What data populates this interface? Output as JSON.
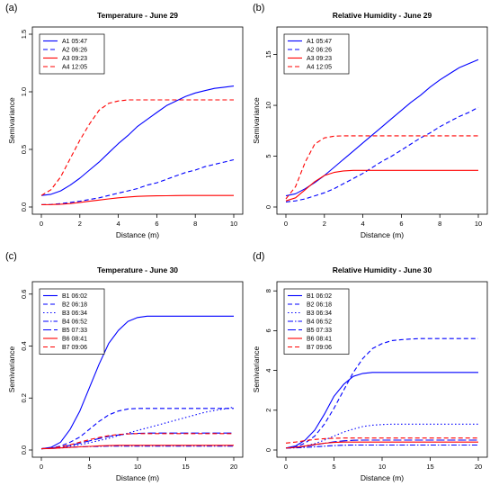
{
  "chart_data": [
    {
      "panel_label": "(a)",
      "title": "Temperature - June 29",
      "type": "line",
      "xlabel": "Distance (m)",
      "ylabel": "Semivariance",
      "xlim": [
        0,
        10
      ],
      "ylim": [
        0,
        1.5
      ],
      "xticks": [
        0,
        2,
        4,
        6,
        8,
        10
      ],
      "yticks": [
        0.0,
        0.5,
        1.0,
        1.5
      ],
      "ytick_labels": [
        "0.0",
        "0.5",
        "1.0",
        "1.5"
      ],
      "legend_position": "top-left",
      "x": [
        0,
        0.5,
        1,
        1.5,
        2,
        2.5,
        3,
        3.5,
        4,
        4.5,
        5,
        5.5,
        6,
        6.5,
        7,
        7.5,
        8,
        8.5,
        9,
        9.5,
        10
      ],
      "series": [
        {
          "name": "A1 05:47",
          "color": "#0000ff",
          "dash": "solid",
          "values": [
            0.1,
            0.11,
            0.14,
            0.19,
            0.25,
            0.32,
            0.39,
            0.47,
            0.55,
            0.62,
            0.7,
            0.76,
            0.82,
            0.88,
            0.92,
            0.96,
            0.99,
            1.01,
            1.03,
            1.04,
            1.05
          ]
        },
        {
          "name": "A2 06:26",
          "color": "#0000ff",
          "dash": "dashed",
          "values": [
            0.02,
            0.022,
            0.03,
            0.04,
            0.05,
            0.065,
            0.08,
            0.1,
            0.12,
            0.14,
            0.16,
            0.19,
            0.21,
            0.24,
            0.27,
            0.3,
            0.32,
            0.35,
            0.37,
            0.39,
            0.41
          ]
        },
        {
          "name": "A3 09:23",
          "color": "#ff0000",
          "dash": "solid",
          "values": [
            0.02,
            0.021,
            0.024,
            0.03,
            0.04,
            0.05,
            0.06,
            0.07,
            0.08,
            0.087,
            0.092,
            0.095,
            0.097,
            0.098,
            0.099,
            0.1,
            0.1,
            0.1,
            0.1,
            0.1,
            0.1
          ]
        },
        {
          "name": "A4 12:05",
          "color": "#ff0000",
          "dash": "dashed",
          "values": [
            0.1,
            0.15,
            0.26,
            0.42,
            0.58,
            0.72,
            0.84,
            0.9,
            0.92,
            0.93,
            0.93,
            0.93,
            0.93,
            0.93,
            0.93,
            0.93,
            0.93,
            0.93,
            0.93,
            0.93,
            0.93
          ]
        }
      ]
    },
    {
      "panel_label": "(b)",
      "title": "Relative Humidity - June 29",
      "type": "line",
      "xlabel": "Distance (m)",
      "ylabel": "Semivariance",
      "xlim": [
        0,
        10
      ],
      "ylim": [
        0,
        17
      ],
      "xticks": [
        0,
        2,
        4,
        6,
        8,
        10
      ],
      "yticks": [
        0,
        5,
        10,
        15
      ],
      "ytick_labels": [
        "0",
        "5",
        "10",
        "15"
      ],
      "legend_position": "top-left",
      "x": [
        0,
        0.5,
        1,
        1.5,
        2,
        2.5,
        3,
        3.5,
        4,
        4.5,
        5,
        5.5,
        6,
        6.5,
        7,
        7.5,
        8,
        8.5,
        9,
        9.5,
        10
      ],
      "series": [
        {
          "name": "A1 05:47",
          "color": "#0000ff",
          "dash": "solid",
          "values": [
            1.1,
            1.3,
            1.8,
            2.4,
            3.1,
            3.9,
            4.7,
            5.5,
            6.3,
            7.1,
            7.9,
            8.7,
            9.5,
            10.3,
            11.0,
            11.8,
            12.5,
            13.1,
            13.7,
            14.1,
            14.5
          ]
        },
        {
          "name": "A2 06:26",
          "color": "#0000ff",
          "dash": "dashed",
          "values": [
            0.5,
            0.6,
            0.8,
            1.1,
            1.4,
            1.8,
            2.3,
            2.8,
            3.3,
            3.9,
            4.5,
            5.0,
            5.6,
            6.2,
            6.8,
            7.3,
            7.9,
            8.4,
            8.9,
            9.3,
            9.8
          ]
        },
        {
          "name": "A3 09:23",
          "color": "#ff0000",
          "dash": "solid",
          "values": [
            0.6,
            0.9,
            1.7,
            2.5,
            3.1,
            3.4,
            3.55,
            3.6,
            3.6,
            3.6,
            3.6,
            3.6,
            3.6,
            3.6,
            3.6,
            3.6,
            3.6,
            3.6,
            3.6,
            3.6,
            3.6
          ]
        },
        {
          "name": "A4 12:05",
          "color": "#ff0000",
          "dash": "dashed",
          "values": [
            0.8,
            2.0,
            4.4,
            6.2,
            6.8,
            6.97,
            7.0,
            7.0,
            7.0,
            7.0,
            7.0,
            7.0,
            7.0,
            7.0,
            7.0,
            7.0,
            7.0,
            7.0,
            7.0,
            7.0,
            7.0
          ]
        }
      ]
    },
    {
      "panel_label": "(c)",
      "title": "Temperature - June 30",
      "type": "line",
      "xlabel": "Distance (m)",
      "ylabel": "Semivariance",
      "xlim": [
        0,
        20
      ],
      "ylim": [
        0,
        0.62
      ],
      "xticks": [
        0,
        5,
        10,
        15,
        20
      ],
      "yticks": [
        0.0,
        0.2,
        0.4,
        0.6
      ],
      "ytick_labels": [
        "0.0",
        "0.2",
        "0.4",
        "0.6"
      ],
      "legend_position": "top-left",
      "x": [
        0,
        1,
        2,
        3,
        4,
        5,
        6,
        7,
        8,
        9,
        10,
        11,
        12,
        13,
        14,
        15,
        16,
        17,
        18,
        19,
        20
      ],
      "series": [
        {
          "name": "B1 06:02",
          "color": "#0000ff",
          "dash": "solid",
          "values": [
            0.005,
            0.01,
            0.03,
            0.08,
            0.15,
            0.24,
            0.33,
            0.41,
            0.46,
            0.495,
            0.51,
            0.515,
            0.515,
            0.515,
            0.515,
            0.515,
            0.515,
            0.515,
            0.515,
            0.515,
            0.515
          ]
        },
        {
          "name": "B2 06:18",
          "color": "#0000ff",
          "dash": "dashed",
          "values": [
            0.005,
            0.008,
            0.015,
            0.03,
            0.05,
            0.08,
            0.11,
            0.135,
            0.15,
            0.158,
            0.16,
            0.16,
            0.16,
            0.16,
            0.16,
            0.16,
            0.16,
            0.16,
            0.16,
            0.16,
            0.16
          ]
        },
        {
          "name": "B3 06:34",
          "color": "#0000ff",
          "dash": "dotted",
          "values": [
            0.005,
            0.007,
            0.01,
            0.015,
            0.02,
            0.028,
            0.036,
            0.045,
            0.055,
            0.065,
            0.075,
            0.085,
            0.095,
            0.105,
            0.115,
            0.125,
            0.135,
            0.145,
            0.152,
            0.158,
            0.165
          ]
        },
        {
          "name": "B4 06:52",
          "color": "#0000ff",
          "dash": "dashdot",
          "values": [
            0.005,
            0.006,
            0.008,
            0.01,
            0.012,
            0.013,
            0.014,
            0.015,
            0.015,
            0.015,
            0.015,
            0.015,
            0.015,
            0.015,
            0.015,
            0.015,
            0.015,
            0.015,
            0.015,
            0.015,
            0.015
          ]
        },
        {
          "name": "B5 07:33",
          "color": "#0000ff",
          "dash": "longdash",
          "values": [
            0.005,
            0.007,
            0.012,
            0.018,
            0.026,
            0.035,
            0.044,
            0.052,
            0.058,
            0.062,
            0.064,
            0.065,
            0.065,
            0.065,
            0.065,
            0.065,
            0.065,
            0.065,
            0.065,
            0.065,
            0.065
          ]
        },
        {
          "name": "B6 08:41",
          "color": "#ff0000",
          "dash": "solid",
          "values": [
            0.005,
            0.006,
            0.008,
            0.01,
            0.012,
            0.014,
            0.016,
            0.017,
            0.018,
            0.018,
            0.018,
            0.018,
            0.018,
            0.018,
            0.018,
            0.018,
            0.018,
            0.018,
            0.018,
            0.018,
            0.018
          ]
        },
        {
          "name": "B7 09:06",
          "color": "#ff0000",
          "dash": "dashed",
          "values": [
            0.005,
            0.007,
            0.012,
            0.02,
            0.03,
            0.04,
            0.048,
            0.055,
            0.06,
            0.062,
            0.063,
            0.063,
            0.063,
            0.063,
            0.063,
            0.063,
            0.063,
            0.063,
            0.063,
            0.063,
            0.063
          ]
        }
      ]
    },
    {
      "panel_label": "(d)",
      "title": "Relative Humidity - June 30",
      "type": "line",
      "xlabel": "Distance (m)",
      "ylabel": "Semivariance",
      "xlim": [
        0,
        20
      ],
      "ylim": [
        0,
        8.1
      ],
      "xticks": [
        0,
        5,
        10,
        15,
        20
      ],
      "yticks": [
        0,
        2,
        4,
        6,
        8
      ],
      "ytick_labels": [
        "0",
        "2",
        "4",
        "6",
        "8"
      ],
      "legend_position": "top-left",
      "x": [
        0,
        1,
        2,
        3,
        4,
        5,
        6,
        7,
        8,
        9,
        10,
        11,
        12,
        13,
        14,
        15,
        16,
        17,
        18,
        19,
        20
      ],
      "series": [
        {
          "name": "B1 06:02",
          "color": "#0000ff",
          "dash": "solid",
          "values": [
            0.1,
            0.2,
            0.5,
            1.0,
            1.8,
            2.7,
            3.3,
            3.7,
            3.85,
            3.9,
            3.9,
            3.9,
            3.9,
            3.9,
            3.9,
            3.9,
            3.9,
            3.9,
            3.9,
            3.9,
            3.9
          ]
        },
        {
          "name": "B2 06:18",
          "color": "#0000ff",
          "dash": "dashed",
          "values": [
            0.1,
            0.15,
            0.35,
            0.7,
            1.3,
            2.1,
            3.0,
            3.9,
            4.6,
            5.1,
            5.35,
            5.5,
            5.55,
            5.58,
            5.6,
            5.6,
            5.6,
            5.6,
            5.6,
            5.6,
            5.6
          ]
        },
        {
          "name": "B3 06:34",
          "color": "#0000ff",
          "dash": "dotted",
          "values": [
            0.1,
            0.12,
            0.2,
            0.32,
            0.5,
            0.7,
            0.9,
            1.05,
            1.18,
            1.25,
            1.28,
            1.3,
            1.3,
            1.3,
            1.3,
            1.3,
            1.3,
            1.3,
            1.3,
            1.3,
            1.3
          ]
        },
        {
          "name": "B4 06:52",
          "color": "#0000ff",
          "dash": "dashdot",
          "values": [
            0.1,
            0.11,
            0.13,
            0.16,
            0.19,
            0.22,
            0.24,
            0.25,
            0.25,
            0.25,
            0.25,
            0.25,
            0.25,
            0.25,
            0.25,
            0.25,
            0.25,
            0.25,
            0.25,
            0.25,
            0.25
          ]
        },
        {
          "name": "B5 07:33",
          "color": "#0000ff",
          "dash": "longdash",
          "values": [
            0.1,
            0.12,
            0.18,
            0.26,
            0.34,
            0.41,
            0.46,
            0.49,
            0.5,
            0.5,
            0.5,
            0.5,
            0.5,
            0.5,
            0.5,
            0.5,
            0.5,
            0.5,
            0.5,
            0.5,
            0.5
          ]
        },
        {
          "name": "B6 08:41",
          "color": "#ff0000",
          "dash": "solid",
          "values": [
            0.1,
            0.13,
            0.2,
            0.28,
            0.34,
            0.38,
            0.4,
            0.4,
            0.4,
            0.4,
            0.4,
            0.4,
            0.4,
            0.4,
            0.4,
            0.4,
            0.4,
            0.4,
            0.4,
            0.4,
            0.4
          ]
        },
        {
          "name": "B7 09:06",
          "color": "#ff0000",
          "dash": "dashed",
          "values": [
            0.35,
            0.4,
            0.47,
            0.53,
            0.57,
            0.59,
            0.6,
            0.6,
            0.6,
            0.6,
            0.6,
            0.6,
            0.6,
            0.6,
            0.6,
            0.6,
            0.6,
            0.6,
            0.6,
            0.6,
            0.6
          ]
        }
      ]
    }
  ]
}
